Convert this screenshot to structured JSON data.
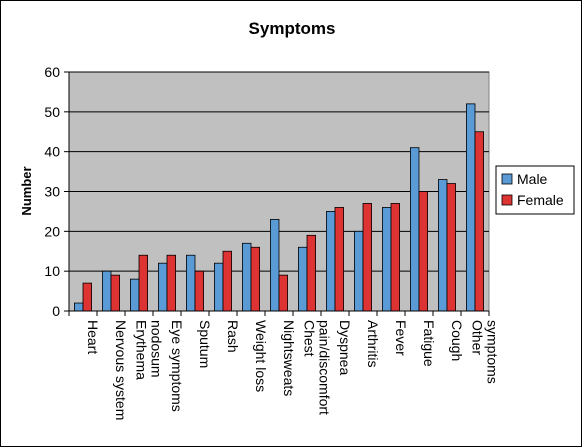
{
  "chart_data": {
    "type": "bar",
    "title": "Symptoms",
    "ylabel": "Number",
    "xlabel": "",
    "ylim": [
      0,
      60
    ],
    "yticks": [
      0,
      10,
      20,
      30,
      40,
      50,
      60
    ],
    "grid": true,
    "legend_position": "right",
    "categories": [
      "Heart",
      "Nervous system",
      "Erythema nodosum",
      "Eye symptoms",
      "Sputum",
      "Rash",
      "Weight loss",
      "Nightsweats",
      "Chest pain/discomfort",
      "Dyspnea",
      "Arthritis",
      "Fever",
      "Fatigue",
      "Cough",
      "Other symptoms"
    ],
    "category_lines": [
      [
        "Heart"
      ],
      [
        "Nervous system"
      ],
      [
        "Erythema",
        "nodosum"
      ],
      [
        "Eye symptoms"
      ],
      [
        "Sputum"
      ],
      [
        "Rash"
      ],
      [
        "Weight loss"
      ],
      [
        "Nightsweats"
      ],
      [
        "Chest",
        "pain/discomfort"
      ],
      [
        "Dyspnea"
      ],
      [
        "Arthritis"
      ],
      [
        "Fever"
      ],
      [
        "Fatigue"
      ],
      [
        "Cough"
      ],
      [
        "Other",
        "symptoms"
      ]
    ],
    "series": [
      {
        "name": "Male",
        "color": "#5b9bd5",
        "values": [
          2,
          10,
          8,
          12,
          14,
          12,
          17,
          23,
          16,
          25,
          20,
          26,
          41,
          33,
          52
        ]
      },
      {
        "name": "Female",
        "color": "#dd3333",
        "values": [
          7,
          9,
          14,
          14,
          10,
          15,
          16,
          9,
          19,
          26,
          27,
          27,
          30,
          32,
          45
        ]
      }
    ],
    "plot_background": "#c0c0c0"
  }
}
